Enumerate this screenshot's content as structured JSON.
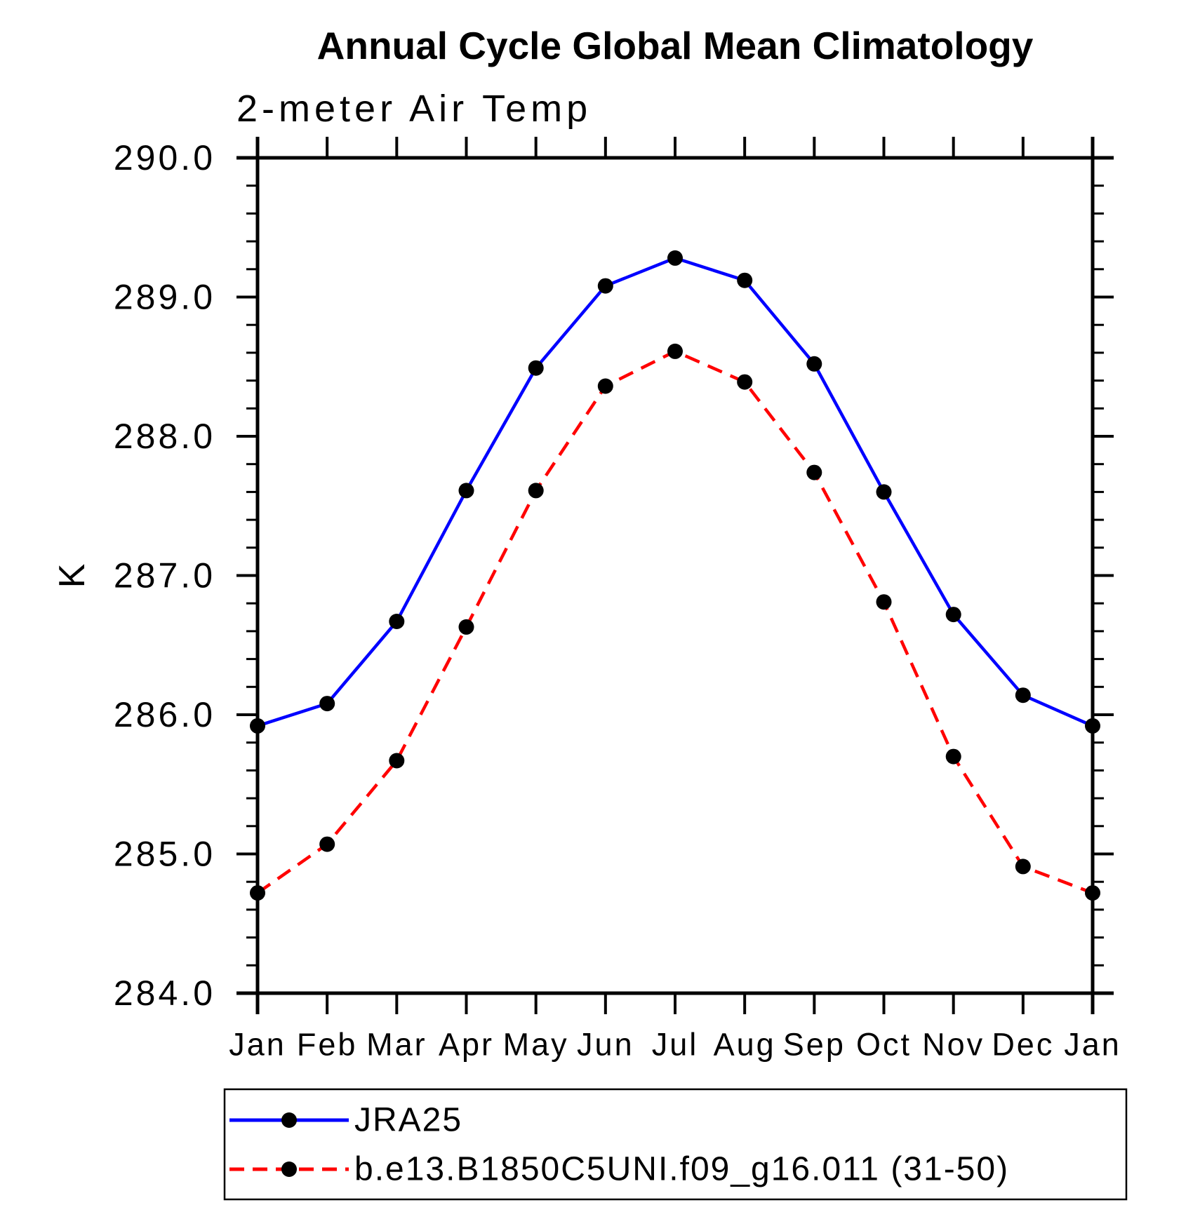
{
  "chart_data": {
    "type": "line",
    "title": "Annual Cycle Global Mean Climatology",
    "subtitle": "2-meter Air Temp",
    "xlabel": "",
    "ylabel": "K",
    "categories": [
      "Jan",
      "Feb",
      "Mar",
      "Apr",
      "May",
      "Jun",
      "Jul",
      "Aug",
      "Sep",
      "Oct",
      "Nov",
      "Dec",
      "Jan"
    ],
    "ylim": [
      284.0,
      290.0
    ],
    "ytick_step": 1.0,
    "ytick_minor_step": 0.2,
    "ytick_labels": [
      "284.0",
      "285.0",
      "286.0",
      "287.0",
      "288.0",
      "289.0",
      "290.0"
    ],
    "grid": false,
    "legend_position": "bottom-left-box",
    "axis_color": "#000000",
    "marker_shape": "filled-circle",
    "series": [
      {
        "name": "JRA25",
        "color": "#0000ff",
        "line_style": "solid",
        "marker_color": "#000000",
        "values": [
          285.92,
          286.08,
          286.67,
          287.61,
          288.49,
          289.08,
          289.28,
          289.12,
          288.52,
          287.6,
          286.72,
          286.14,
          285.92
        ]
      },
      {
        "name": "b.e13.B1850C5UNI.f09_g16.011 (31-50)",
        "color": "#ff0000",
        "line_style": "dashed",
        "marker_color": "#000000",
        "values": [
          284.72,
          285.07,
          285.67,
          286.63,
          287.61,
          288.36,
          288.61,
          288.39,
          287.74,
          286.81,
          285.7,
          284.91,
          284.72
        ]
      }
    ]
  }
}
